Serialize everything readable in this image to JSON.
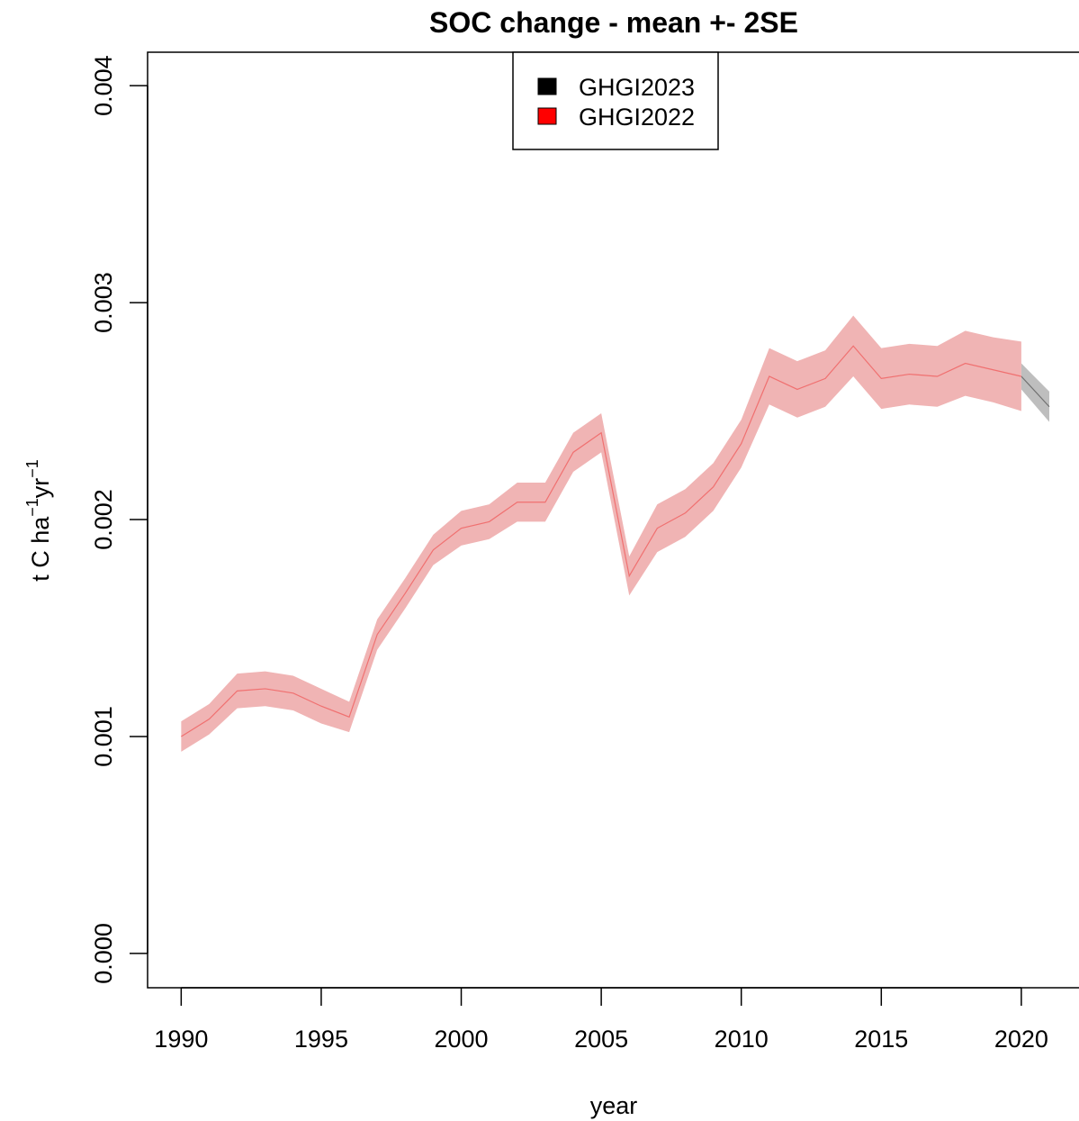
{
  "chart_data": {
    "type": "line_band",
    "title": "SOC change - mean +- 2SE",
    "xlabel": "year",
    "ylabel": [
      "t C ha",
      "−1",
      "yr",
      "−1"
    ],
    "xlim": [
      1988.8,
      2022.06
    ],
    "ylim": [
      -0.000158,
      0.004154
    ],
    "xticks": [
      1990,
      1995,
      2000,
      2005,
      2010,
      2015,
      2020
    ],
    "yticks": [
      {
        "value": 0,
        "label": "0.000"
      },
      {
        "value": 0.001,
        "label": "0.001"
      },
      {
        "value": 0.002,
        "label": "0.002"
      },
      {
        "value": 0.003,
        "label": "0.003"
      },
      {
        "value": 0.004,
        "label": "0.004"
      }
    ],
    "legend": "top",
    "series": [
      {
        "name": "GHGI2023",
        "color": "black",
        "line_color": "#707070",
        "band_color": "#bebebe",
        "x": [
          2020,
          2021
        ],
        "values": [
          0.00266,
          0.00252
        ],
        "two_se": [
          6e-05,
          7e-05
        ]
      },
      {
        "name": "GHGI2022",
        "color": "red",
        "line_color": "#f07070",
        "band_color": "#f0b4b4",
        "x": [
          1990,
          1991,
          1992,
          1993,
          1994,
          1995,
          1996,
          1997,
          1998,
          1999,
          2000,
          2001,
          2002,
          2003,
          2004,
          2005,
          2006,
          2007,
          2008,
          2009,
          2010,
          2011,
          2012,
          2013,
          2014,
          2015,
          2016,
          2017,
          2018,
          2019,
          2020
        ],
        "values": [
          0.001,
          0.00108,
          0.00121,
          0.00122,
          0.0012,
          0.00114,
          0.00109,
          0.00147,
          0.00166,
          0.00186,
          0.00196,
          0.00199,
          0.00208,
          0.00208,
          0.00231,
          0.0024,
          0.00174,
          0.00196,
          0.00203,
          0.00215,
          0.00235,
          0.00266,
          0.0026,
          0.00265,
          0.0028,
          0.00265,
          0.00267,
          0.00266,
          0.00272,
          0.00269,
          0.00266
        ],
        "two_se": [
          7e-05,
          7e-05,
          8e-05,
          8e-05,
          8e-05,
          8e-05,
          7e-05,
          7e-05,
          7e-05,
          7e-05,
          8e-05,
          8e-05,
          9e-05,
          9e-05,
          9e-05,
          9e-05,
          9e-05,
          0.00011,
          0.00011,
          0.00011,
          0.00011,
          0.00013,
          0.00013,
          0.00013,
          0.00014,
          0.00014,
          0.00014,
          0.00014,
          0.00015,
          0.00015,
          0.00016
        ]
      }
    ]
  }
}
